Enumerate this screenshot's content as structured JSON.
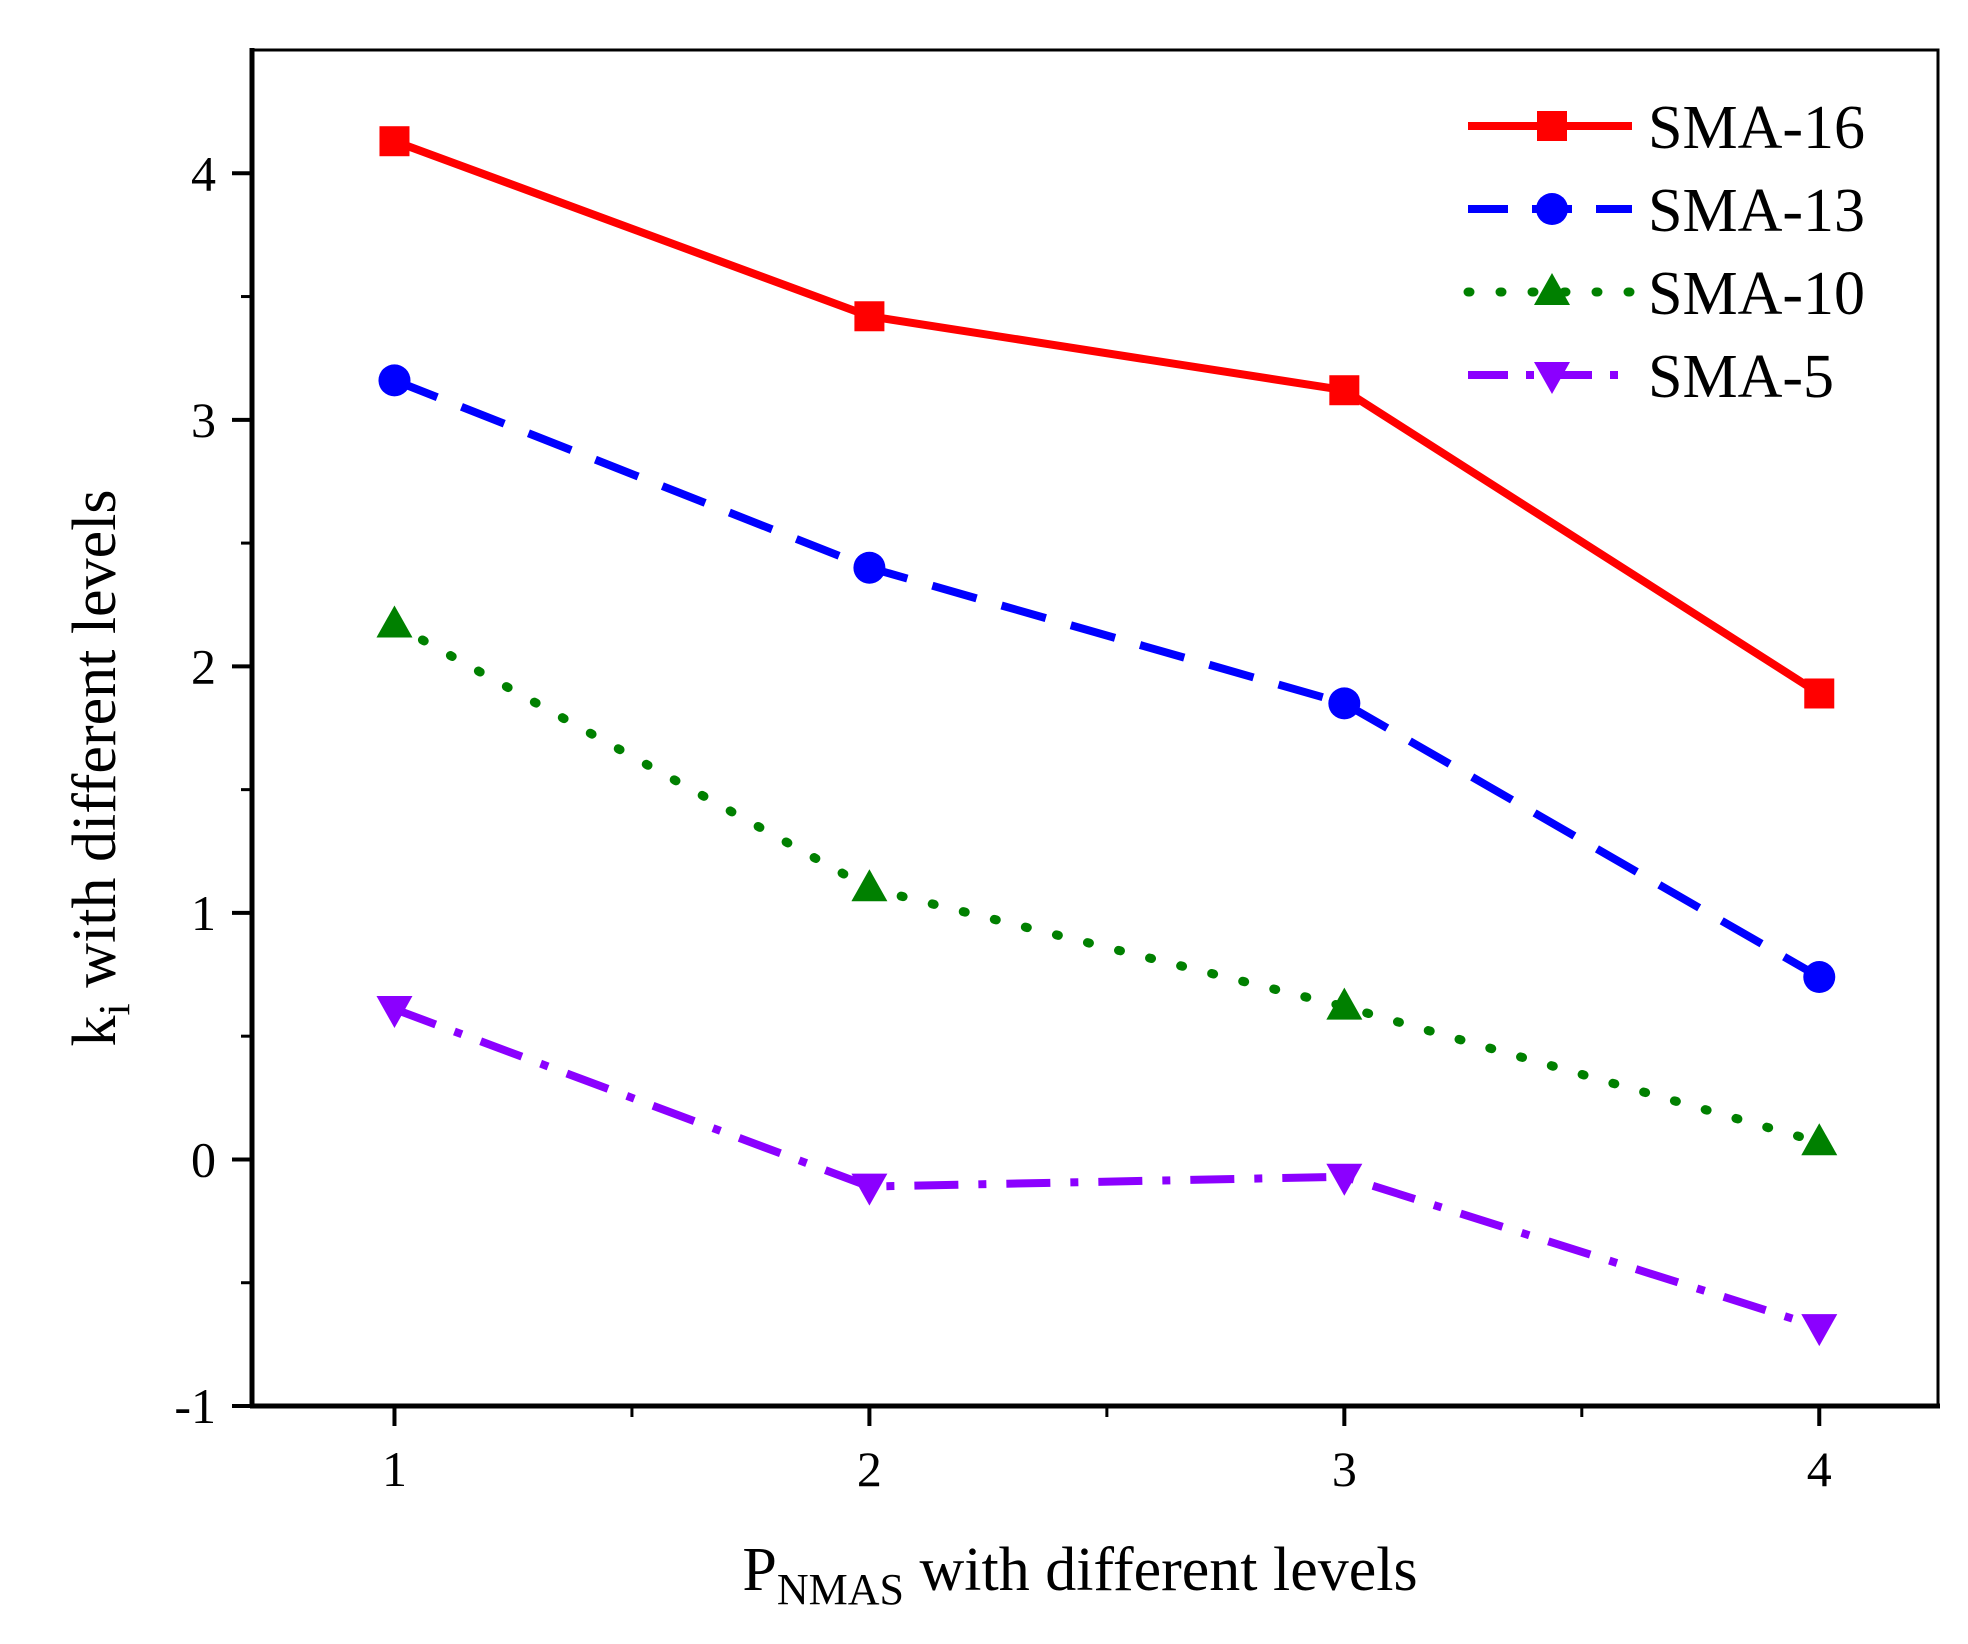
{
  "chart_data": {
    "type": "line",
    "title": "",
    "xlabel": {
      "main": "P",
      "sub": "NMAS",
      "rest": " with different levels"
    },
    "ylabel": {
      "main": "k",
      "sub": "i",
      "rest": " with different levels"
    },
    "x": [
      1,
      2,
      3,
      4
    ],
    "xlim": [
      0.7,
      4.25
    ],
    "ylim": [
      -1,
      4.5
    ],
    "xticks": [
      1,
      2,
      3,
      4
    ],
    "yticks": [
      -1,
      0,
      1,
      2,
      3,
      4
    ],
    "legend_position": "top-right",
    "grid": false,
    "series": [
      {
        "name": "SMA-16",
        "values": [
          4.13,
          3.42,
          3.12,
          1.89
        ],
        "color": "#ff0000",
        "dash": "solid",
        "marker": "square"
      },
      {
        "name": "SMA-13",
        "values": [
          3.16,
          2.4,
          1.85,
          0.74
        ],
        "color": "#0000ff",
        "dash": "dash",
        "marker": "circle"
      },
      {
        "name": "SMA-10",
        "values": [
          2.17,
          1.1,
          0.62,
          0.07
        ],
        "color": "#008000",
        "dash": "dot",
        "marker": "triangle-up"
      },
      {
        "name": "SMA-5",
        "values": [
          0.61,
          -0.11,
          -0.07,
          -0.68
        ],
        "color": "#8b00ff",
        "dash": "dashdot",
        "marker": "triangle-down"
      }
    ]
  }
}
